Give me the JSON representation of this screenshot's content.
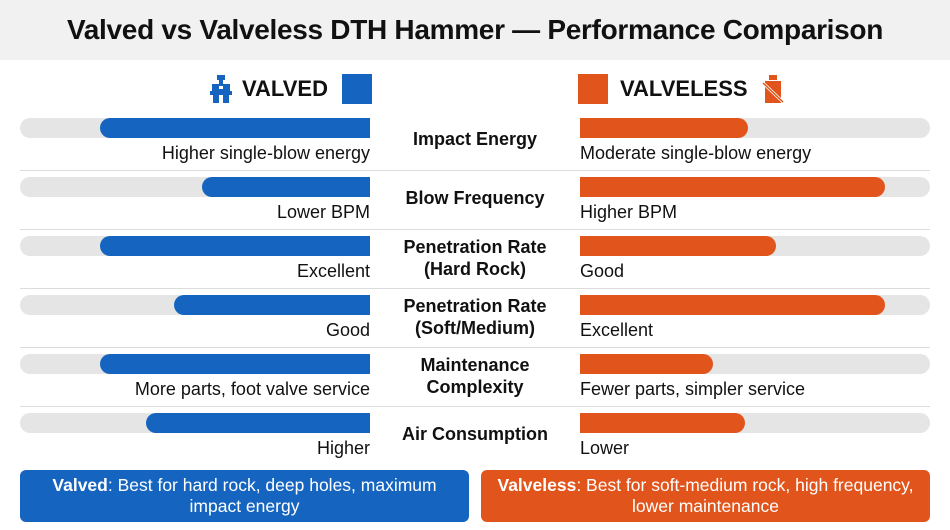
{
  "title": "Valved vs Valveless DTH Hammer — Performance Comparison",
  "colors": {
    "valved": "#1565c0",
    "valveless": "#e1541b",
    "track": "#e5e5e5"
  },
  "header": {
    "left": {
      "label": "VALVED",
      "icon": "valve-icon"
    },
    "right": {
      "label": "VALVELESS",
      "icon": "no-valve-icon"
    }
  },
  "chart_data": {
    "type": "bar",
    "orientation": "horizontal-mirrored",
    "series_order": [
      "VALVED",
      "VALVELESS"
    ],
    "xlim": [
      0,
      1
    ],
    "rows": [
      {
        "metric": "Impact Energy",
        "valved": 0.77,
        "valveless": 0.48,
        "valved_text": "Higher single-blow energy",
        "valveless_text": "Moderate single-blow energy"
      },
      {
        "metric": "Blow Frequency",
        "valved": 0.48,
        "valveless": 0.87,
        "valved_text": "Lower BPM",
        "valveless_text": "Higher BPM"
      },
      {
        "metric": "Penetration Rate\n(Hard Rock)",
        "valved": 0.77,
        "valveless": 0.56,
        "valved_text": "Excellent",
        "valveless_text": "Good"
      },
      {
        "metric": "Penetration Rate\n(Soft/Medium)",
        "valved": 0.56,
        "valveless": 0.87,
        "valved_text": "Good",
        "valveless_text": "Excellent"
      },
      {
        "metric": "Maintenance\nComplexity",
        "valved": 0.77,
        "valveless": 0.38,
        "valved_text": "More parts, foot valve service",
        "valveless_text": "Fewer parts, simpler service"
      },
      {
        "metric": "Air Consumption",
        "valved": 0.64,
        "valveless": 0.47,
        "valved_text": "Higher",
        "valveless_text": "Lower"
      }
    ]
  },
  "summary": {
    "left": {
      "bold": "Valved",
      "text": ": Best for hard rock, deep holes, maximum impact energy"
    },
    "right": {
      "bold": "Valveless",
      "text": ": Best for soft-medium rock, high frequency, lower maintenance"
    }
  }
}
